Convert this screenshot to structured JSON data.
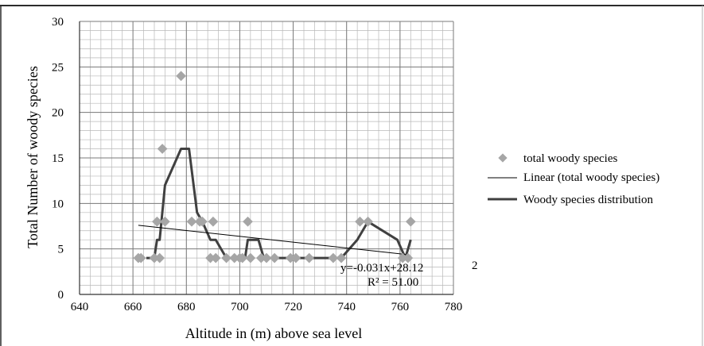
{
  "chart_data": {
    "type": "scatter",
    "title": "",
    "xlabel": "Altitude in (m) above sea level",
    "ylabel": "Total Number of woody species",
    "xlim": [
      640,
      780
    ],
    "ylim": [
      0,
      30
    ],
    "x_ticks": [
      640,
      660,
      680,
      700,
      720,
      740,
      760,
      780
    ],
    "y_ticks": [
      0,
      5,
      10,
      15,
      20,
      25,
      30
    ],
    "x_tick_labels": [
      "640",
      "660",
      "680",
      "700",
      "720",
      "740",
      "760",
      "780"
    ],
    "y_tick_labels": [
      "0",
      "5",
      "10",
      "15",
      "20",
      "25",
      "30"
    ],
    "grid": true,
    "legend_position": "right",
    "series": [
      {
        "name": "total woody species",
        "kind": "scatter",
        "marker": "diamond",
        "color": "#a6a6a6",
        "points": [
          [
            662,
            4
          ],
          [
            663,
            4
          ],
          [
            668,
            4
          ],
          [
            669,
            8
          ],
          [
            670,
            4
          ],
          [
            671,
            16
          ],
          [
            672,
            8
          ],
          [
            678,
            24
          ],
          [
            682,
            8
          ],
          [
            685,
            8
          ],
          [
            686,
            8
          ],
          [
            689,
            4
          ],
          [
            690,
            8
          ],
          [
            691,
            4
          ],
          [
            695,
            4
          ],
          [
            698,
            4
          ],
          [
            700,
            4
          ],
          [
            701,
            4
          ],
          [
            703,
            8
          ],
          [
            704,
            4
          ],
          [
            708,
            4
          ],
          [
            710,
            4
          ],
          [
            713,
            4
          ],
          [
            719,
            4
          ],
          [
            721,
            4
          ],
          [
            726,
            4
          ],
          [
            735,
            4
          ],
          [
            738,
            4
          ],
          [
            745,
            8
          ],
          [
            748,
            8
          ],
          [
            761,
            4
          ],
          [
            763,
            4
          ],
          [
            764,
            8
          ]
        ]
      },
      {
        "name": "Linear (total woody species)",
        "kind": "trendline",
        "color": "#000000",
        "points": [
          [
            662,
            7.6
          ],
          [
            762,
            4.4
          ]
        ]
      },
      {
        "name": "Woody species distribution",
        "kind": "line",
        "color": "#404040",
        "points": [
          [
            665,
            4
          ],
          [
            668,
            4
          ],
          [
            669,
            6
          ],
          [
            670,
            6
          ],
          [
            672,
            12
          ],
          [
            678,
            16
          ],
          [
            681,
            16
          ],
          [
            684,
            9
          ],
          [
            686,
            8
          ],
          [
            689,
            6
          ],
          [
            691,
            6
          ],
          [
            695,
            4
          ],
          [
            701,
            4
          ],
          [
            702,
            4
          ],
          [
            703,
            6
          ],
          [
            707,
            6
          ],
          [
            709,
            4
          ],
          [
            738,
            4
          ],
          [
            744,
            6
          ],
          [
            748,
            8
          ],
          [
            759,
            6
          ],
          [
            762,
            4
          ],
          [
            764,
            6
          ]
        ]
      }
    ],
    "annotations": {
      "equation": "y=-0.031x+28.12",
      "equation_suffix": "2",
      "r_squared": "R² = 51.00"
    }
  }
}
